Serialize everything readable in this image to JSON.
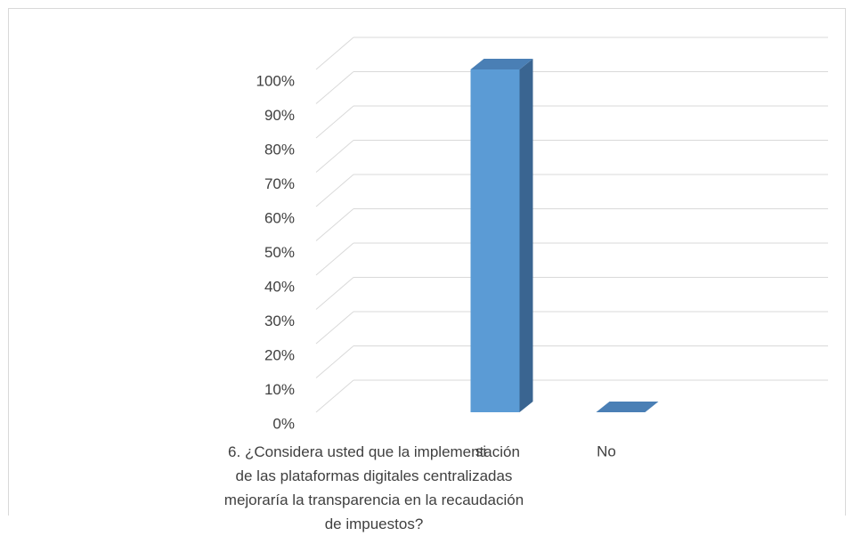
{
  "chart_data": {
    "type": "bar3d",
    "categories": [
      "6. ¿Considera usted que la implementación de las plataformas digitales centralizadas mejoraría la transparencia en la recaudación de impuestos?",
      "si",
      "No"
    ],
    "values": [
      null,
      100,
      0
    ],
    "color": "#5b9bd5",
    "ylim": [
      0,
      100
    ],
    "yticks": [
      {
        "value": 0,
        "label": "0%"
      },
      {
        "value": 10,
        "label": "10%"
      },
      {
        "value": 20,
        "label": "20%"
      },
      {
        "value": 30,
        "label": "30%"
      },
      {
        "value": 40,
        "label": "40%"
      },
      {
        "value": 50,
        "label": "50%"
      },
      {
        "value": 60,
        "label": "60%"
      },
      {
        "value": 70,
        "label": "70%"
      },
      {
        "value": 80,
        "label": "80%"
      },
      {
        "value": 90,
        "label": "90%"
      },
      {
        "value": 100,
        "label": "100%"
      }
    ],
    "grid": true
  }
}
